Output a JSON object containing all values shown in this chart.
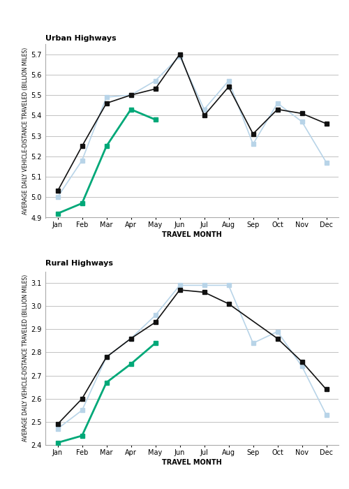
{
  "months": [
    "Jan",
    "Feb",
    "Mar",
    "Apr",
    "May",
    "Jun",
    "Jul",
    "Aug",
    "Sep",
    "Oct",
    "Nov",
    "Dec"
  ],
  "urban": {
    "title": "Urban Highways",
    "ylabel": "AVERAGE DAILY VEHICLE-DISTANCE TRAVELED (BILLION MILES)",
    "xlabel": "TRAVEL MONTH",
    "ylim": [
      4.9,
      5.75
    ],
    "yticks": [
      4.9,
      5.0,
      5.1,
      5.2,
      5.3,
      5.4,
      5.5,
      5.6,
      5.7
    ],
    "black_line": [
      5.03,
      5.25,
      5.46,
      5.5,
      5.53,
      5.7,
      5.4,
      5.54,
      5.31,
      5.43,
      5.41,
      5.36
    ],
    "blue_line": [
      5.0,
      5.18,
      5.49,
      5.5,
      5.57,
      5.69,
      5.43,
      5.57,
      5.26,
      5.46,
      5.37,
      5.17
    ],
    "green_line": [
      4.92,
      4.97,
      5.25,
      5.43,
      5.38,
      null,
      null,
      null,
      null,
      null,
      null,
      null
    ]
  },
  "rural": {
    "title": "Rural Highways",
    "ylabel": "AVERAGE DAILY VEHICLE-DISTANCE TRAVELED (BILLION MILES)",
    "xlabel": "TRAVEL MONTH",
    "ylim": [
      2.4,
      3.15
    ],
    "yticks": [
      2.4,
      2.5,
      2.6,
      2.7,
      2.8,
      2.9,
      3.0,
      3.1
    ],
    "black_line": [
      2.49,
      2.6,
      2.78,
      2.86,
      2.93,
      3.07,
      3.06,
      3.01,
      null,
      2.86,
      2.76,
      2.64
    ],
    "blue_line": [
      2.47,
      2.55,
      2.78,
      2.86,
      2.96,
      3.09,
      3.09,
      3.09,
      2.84,
      2.89,
      2.74,
      2.53
    ],
    "green_line": [
      2.41,
      2.44,
      2.67,
      2.75,
      2.84,
      null,
      null,
      null,
      null,
      null,
      null,
      null
    ]
  },
  "black_color": "#111111",
  "blue_color": "#b8d4e8",
  "green_color": "#00a878",
  "marker_size": 4,
  "linewidth": 1.2,
  "green_linewidth": 2.0,
  "tick_labelsize": 7,
  "xlabel_fontsize": 7,
  "ylabel_fontsize": 5.5,
  "title_fontsize": 8
}
